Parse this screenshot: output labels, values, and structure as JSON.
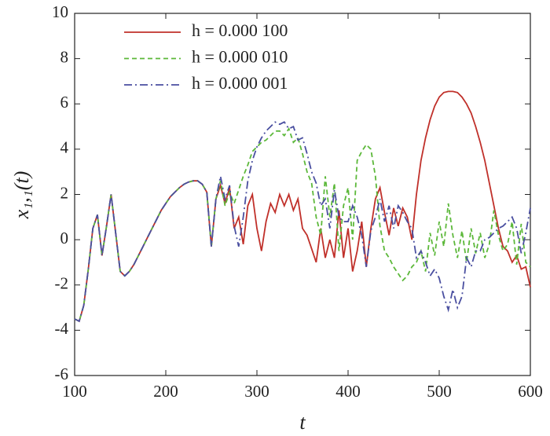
{
  "chart_data": {
    "type": "line",
    "xlabel": "t",
    "ylabel": "x₁,₁(t)",
    "x": [
      100,
      105,
      110,
      115,
      120,
      125,
      130,
      135,
      140,
      145,
      150,
      155,
      160,
      165,
      170,
      175,
      180,
      185,
      190,
      195,
      200,
      205,
      210,
      215,
      220,
      225,
      230,
      235,
      240,
      245,
      250,
      255,
      260,
      265,
      270,
      275,
      280,
      285,
      290,
      295,
      300,
      305,
      310,
      315,
      320,
      325,
      330,
      335,
      340,
      345,
      350,
      355,
      360,
      365,
      370,
      375,
      380,
      385,
      390,
      395,
      400,
      405,
      410,
      415,
      420,
      425,
      430,
      435,
      440,
      445,
      450,
      455,
      460,
      465,
      470,
      475,
      480,
      485,
      490,
      495,
      500,
      505,
      510,
      515,
      520,
      525,
      530,
      535,
      540,
      545,
      550,
      555,
      560,
      565,
      570,
      575,
      580,
      585,
      590,
      595,
      600
    ],
    "series": [
      {
        "name": "h = 0.000 100",
        "color": "#c0302a",
        "dash": "solid",
        "values": [
          -3.5,
          -3.6,
          -2.9,
          -1.3,
          0.5,
          1.1,
          -0.7,
          0.6,
          2.0,
          0.3,
          -1.4,
          -1.6,
          -1.4,
          -1.1,
          -0.7,
          -0.3,
          0.1,
          0.5,
          0.9,
          1.3,
          1.6,
          1.9,
          2.1,
          2.3,
          2.45,
          2.55,
          2.6,
          2.6,
          2.45,
          2.1,
          -0.3,
          1.8,
          2.4,
          1.6,
          2.3,
          0.5,
          1.0,
          -0.2,
          1.5,
          2.0,
          0.5,
          -0.5,
          0.8,
          1.6,
          1.2,
          2.0,
          1.5,
          2.0,
          1.3,
          1.8,
          0.5,
          0.2,
          -0.4,
          -1.0,
          0.5,
          -0.8,
          0.0,
          -0.8,
          1.3,
          -0.8,
          0.5,
          -1.4,
          -0.5,
          0.8,
          -1.2,
          0.5,
          1.8,
          2.3,
          1.2,
          0.2,
          1.4,
          0.6,
          1.4,
          1.0,
          0.0,
          2.0,
          3.5,
          4.5,
          5.3,
          5.9,
          6.3,
          6.5,
          6.55,
          6.55,
          6.5,
          6.3,
          6.0,
          5.6,
          5.0,
          4.3,
          3.5,
          2.5,
          1.5,
          0.5,
          -0.3,
          -0.5,
          -1.0,
          -0.7,
          -1.3,
          -1.2,
          -2.1
        ]
      },
      {
        "name": "h = 0.000 010",
        "color": "#5cb83a",
        "dash": "dashed",
        "values": [
          -3.5,
          -3.6,
          -2.9,
          -1.3,
          0.5,
          1.1,
          -0.7,
          0.6,
          2.0,
          0.3,
          -1.4,
          -1.6,
          -1.4,
          -1.1,
          -0.7,
          -0.3,
          0.1,
          0.5,
          0.9,
          1.3,
          1.6,
          1.9,
          2.1,
          2.3,
          2.45,
          2.55,
          2.6,
          2.6,
          2.45,
          2.1,
          -0.3,
          1.8,
          2.6,
          1.5,
          2.1,
          1.6,
          2.2,
          2.8,
          3.3,
          3.9,
          4.1,
          4.3,
          4.4,
          4.6,
          4.8,
          4.8,
          4.6,
          4.9,
          4.3,
          4.5,
          3.8,
          3.0,
          2.5,
          1.0,
          0.2,
          2.8,
          1.0,
          2.5,
          -0.5,
          1.5,
          2.3,
          0.0,
          3.5,
          3.9,
          4.2,
          4.0,
          2.8,
          0.6,
          -0.5,
          -0.8,
          -1.2,
          -1.5,
          -1.8,
          -1.6,
          -1.2,
          -1.0,
          -0.5,
          -1.4,
          0.3,
          -0.7,
          0.8,
          -0.3,
          1.6,
          0.2,
          -0.8,
          0.4,
          -1.0,
          0.5,
          -0.6,
          0.3,
          -0.8,
          -0.2,
          1.3,
          0.2,
          -0.5,
          -0.2,
          0.8,
          -1.1,
          0.7,
          -1.0,
          -1.2
        ]
      },
      {
        "name": "h = 0.000 001",
        "color": "#4a4fa0",
        "dash": "dashdot",
        "values": [
          -3.5,
          -3.6,
          -2.9,
          -1.3,
          0.5,
          1.1,
          -0.7,
          0.6,
          2.0,
          0.3,
          -1.4,
          -1.6,
          -1.4,
          -1.1,
          -0.7,
          -0.3,
          0.1,
          0.5,
          0.9,
          1.3,
          1.6,
          1.9,
          2.1,
          2.3,
          2.45,
          2.55,
          2.6,
          2.6,
          2.45,
          2.1,
          -0.3,
          1.8,
          2.8,
          1.8,
          2.4,
          0.6,
          -0.3,
          1.0,
          2.6,
          3.5,
          4.1,
          4.5,
          4.8,
          5.0,
          5.2,
          5.1,
          5.2,
          4.9,
          5.0,
          4.4,
          4.5,
          3.8,
          3.0,
          2.5,
          1.5,
          1.8,
          0.5,
          2.2,
          1.0,
          0.8,
          0.8,
          1.5,
          1.0,
          0.2,
          -1.2,
          0.4,
          1.0,
          1.8,
          0.8,
          1.5,
          0.5,
          1.5,
          1.2,
          0.8,
          0.5,
          -0.8,
          -0.5,
          -1.0,
          -1.6,
          -1.3,
          -1.7,
          -2.5,
          -3.1,
          -2.2,
          -3.0,
          -2.5,
          -0.8,
          -1.2,
          -0.5,
          -0.5,
          0.0,
          0.1,
          0.3,
          0.5,
          0.6,
          0.8,
          1.0,
          0.5,
          -0.6,
          0.3,
          1.4
        ]
      }
    ],
    "xlim": [
      100,
      600
    ],
    "xticks": [
      100,
      200,
      300,
      400,
      500,
      600
    ],
    "ylim": [
      -6,
      10
    ],
    "yticks": [
      -6,
      -4,
      -2,
      0,
      2,
      4,
      6,
      8,
      10
    ],
    "legend": "upper left"
  }
}
